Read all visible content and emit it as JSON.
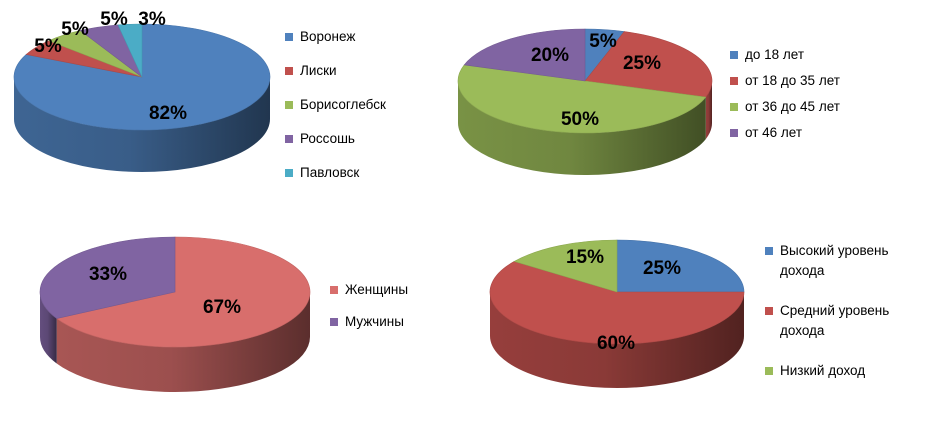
{
  "chart_data": [
    {
      "type": "pie",
      "title": "",
      "legend_position": "right",
      "slices": [
        {
          "label": "Воронеж",
          "value": 82,
          "display": "82%",
          "color": "#4F81BD"
        },
        {
          "label": "Лиски",
          "value": 5,
          "display": "5%",
          "color": "#C0504D"
        },
        {
          "label": "Борисоглебск",
          "value": 5,
          "display": "5%",
          "color": "#9BBB59"
        },
        {
          "label": "Россошь",
          "value": 5,
          "display": "5%",
          "color": "#8064A2"
        },
        {
          "label": "Павловск",
          "value": 3,
          "display": "3%",
          "color": "#4BACC6"
        }
      ]
    },
    {
      "type": "pie",
      "title": "",
      "legend_position": "right",
      "slices": [
        {
          "label": "до 18 лет",
          "value": 5,
          "display": "5%",
          "color": "#4F81BD"
        },
        {
          "label": "от 18 до 35 лет",
          "value": 25,
          "display": "25%",
          "color": "#C0504D"
        },
        {
          "label": "от 36 до 45 лет",
          "value": 50,
          "display": "50%",
          "color": "#9BBB59"
        },
        {
          "label": "от 46 лет",
          "value": 20,
          "display": "20%",
          "color": "#8064A2"
        }
      ]
    },
    {
      "type": "pie",
      "title": "",
      "legend_position": "right",
      "slices": [
        {
          "label": "Женщины",
          "value": 67,
          "display": "67%",
          "color": "#D86E6C"
        },
        {
          "label": "Мужчины",
          "value": 33,
          "display": "33%",
          "color": "#8064A2"
        }
      ]
    },
    {
      "type": "pie",
      "title": "",
      "legend_position": "right",
      "slices": [
        {
          "label": "Высокий уровень дохода",
          "value": 25,
          "display": "25%",
          "color": "#4F81BD"
        },
        {
          "label": "Средний уровень дохода",
          "value": 60,
          "display": "60%",
          "color": "#C0504D"
        },
        {
          "label": "Низкий доход",
          "value": 15,
          "display": "15%",
          "color": "#9BBB59"
        }
      ]
    }
  ]
}
